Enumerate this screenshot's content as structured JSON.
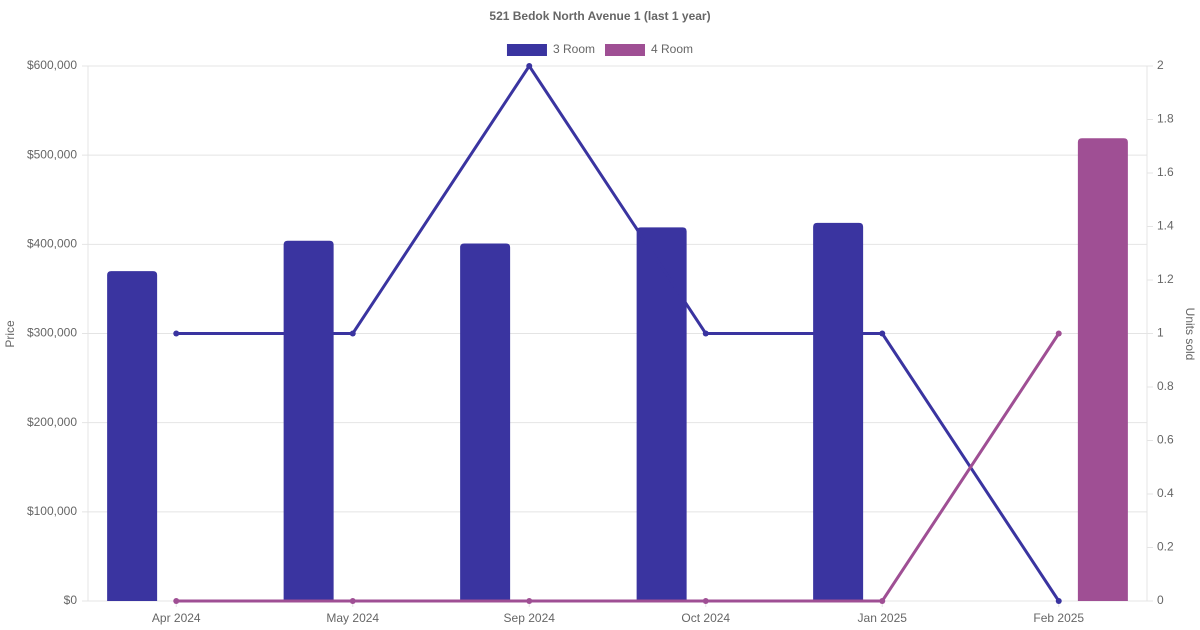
{
  "chart_data": {
    "type": "bar-line",
    "title": "521 Bedok North Avenue 1 (last 1 year)",
    "y_label": "Price",
    "y2_label": "Units sold",
    "categories": [
      "Apr 2024",
      "May 2024",
      "Sep 2024",
      "Oct 2024",
      "Jan 2025",
      "Feb 2025"
    ],
    "series": [
      {
        "name": "3 Room",
        "color": "#3a34a0",
        "values": [
          370000,
          404000,
          401000,
          419000,
          424000,
          null
        ],
        "units": [
          1,
          1,
          2,
          1,
          1,
          0
        ],
        "units_axis": "y2"
      },
      {
        "name": "4 Room",
        "color": "#9f4f94",
        "values": [
          null,
          null,
          null,
          null,
          null,
          519000
        ],
        "units": [
          0,
          0,
          0,
          0,
          0,
          1
        ],
        "units_axis": "y2"
      }
    ],
    "ylim": [
      0,
      600000
    ],
    "yticks": [
      {
        "value": 0,
        "label": "$0"
      },
      {
        "value": 100000,
        "label": "$100,000"
      },
      {
        "value": 200000,
        "label": "$200,000"
      },
      {
        "value": 300000,
        "label": "$300,000"
      },
      {
        "value": 400000,
        "label": "$400,000"
      },
      {
        "value": 500000,
        "label": "$500,000"
      },
      {
        "value": 600000,
        "label": "$600,000"
      }
    ],
    "y2lim": [
      0,
      2
    ],
    "y2ticks": [
      0,
      0.2,
      0.4,
      0.6,
      0.8,
      1,
      1.2,
      1.4,
      1.6,
      1.8,
      2
    ],
    "grid": true,
    "legend": "top"
  }
}
